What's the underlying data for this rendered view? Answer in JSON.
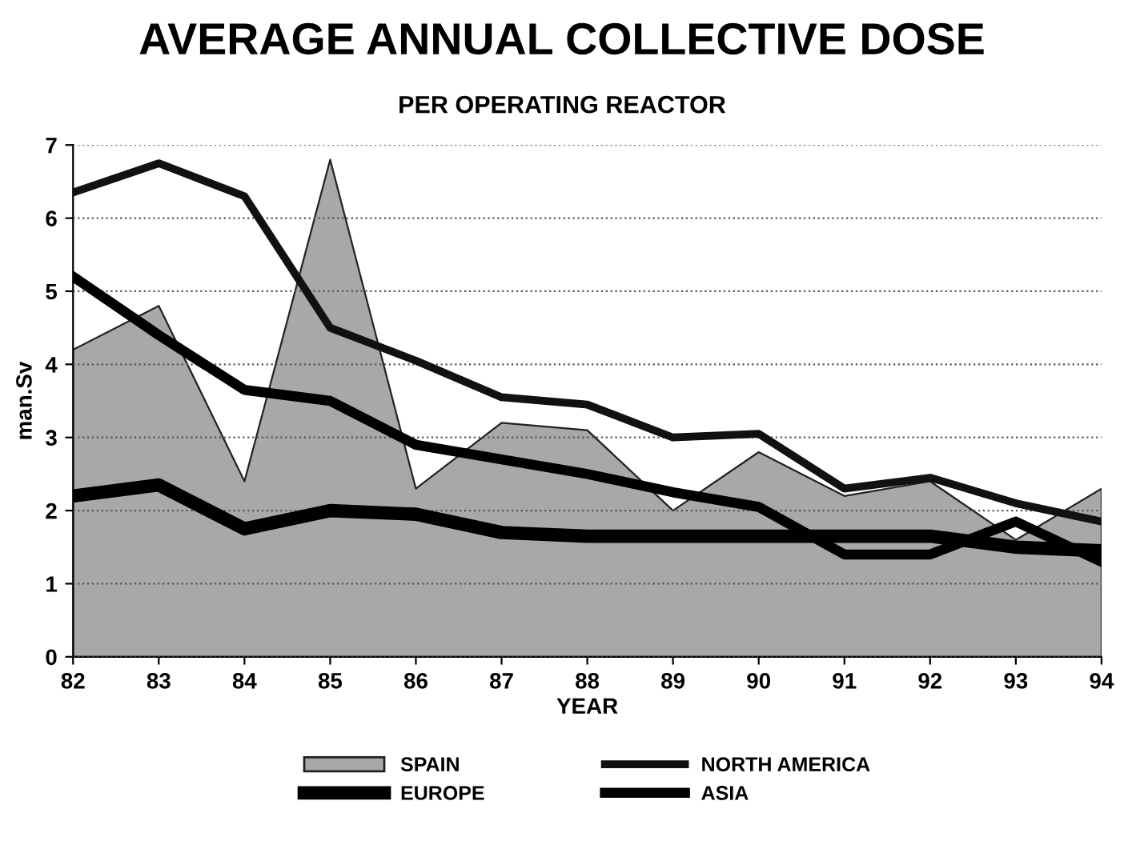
{
  "chart_data": {
    "type": "line",
    "title": "AVERAGE ANNUAL COLLECTIVE DOSE",
    "subtitle": "PER OPERATING REACTOR",
    "xlabel": "YEAR",
    "ylabel": "man.Sv",
    "categories": [
      "82",
      "83",
      "84",
      "85",
      "86",
      "87",
      "88",
      "89",
      "90",
      "91",
      "92",
      "93",
      "94"
    ],
    "series": [
      {
        "name": "SPAIN",
        "type": "area",
        "color": "#a8a8a8",
        "values": [
          4.2,
          4.8,
          2.4,
          6.8,
          2.3,
          3.2,
          3.1,
          2.0,
          2.8,
          2.2,
          2.4,
          1.6,
          2.3
        ]
      },
      {
        "name": "NORTH AMERICA",
        "color": "#111111",
        "values": [
          6.35,
          6.75,
          6.3,
          4.5,
          4.05,
          3.55,
          3.45,
          3.0,
          3.05,
          2.3,
          2.45,
          2.1,
          1.85
        ]
      },
      {
        "name": "EUROPE",
        "color": "#000000",
        "values": [
          2.2,
          2.35,
          1.75,
          2.0,
          1.95,
          1.7,
          1.65,
          1.65,
          1.65,
          1.65,
          1.65,
          1.5,
          1.45
        ]
      },
      {
        "name": "ASIA",
        "color": "#000000",
        "values": [
          5.2,
          4.4,
          3.65,
          3.5,
          2.9,
          2.7,
          2.5,
          2.25,
          2.05,
          1.4,
          1.4,
          1.85,
          1.3
        ]
      }
    ],
    "ylim": [
      0,
      7
    ],
    "yticks": [
      0,
      1,
      2,
      3,
      4,
      5,
      6,
      7
    ],
    "grid": "y",
    "legend": "bottom",
    "marker": "none",
    "line_style": "solid"
  }
}
